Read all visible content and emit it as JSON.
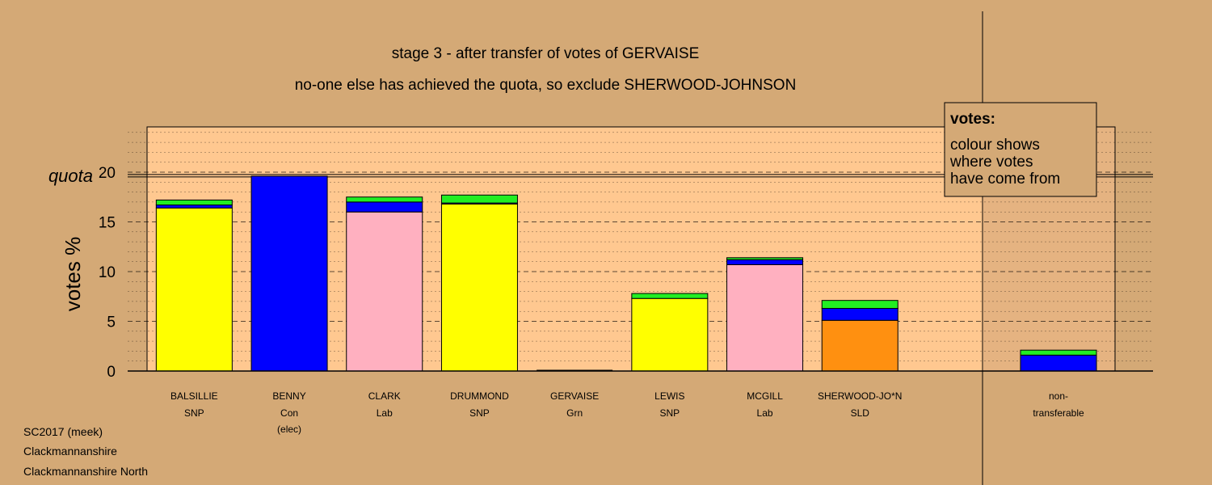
{
  "chart_data": {
    "type": "bar",
    "title": "stage 3 - after transfer of votes of GERVAISE",
    "subtitle": "no-one else has achieved the quota, so exclude SHERWOOD-JOHNSON",
    "ylabel": "votes %",
    "ylim": [
      0,
      25
    ],
    "yticks": [
      "0",
      "5",
      "10",
      "15",
      "20"
    ],
    "quota_label": "quota",
    "quota_value": 19.6,
    "categories": [
      {
        "name": "BALSILLIE",
        "party": "SNP",
        "note": ""
      },
      {
        "name": "BENNY",
        "party": "Con",
        "note": "(elec)"
      },
      {
        "name": "CLARK",
        "party": "Lab",
        "note": ""
      },
      {
        "name": "DRUMMOND",
        "party": "SNP",
        "note": ""
      },
      {
        "name": "GERVAISE",
        "party": "Grn",
        "note": ""
      },
      {
        "name": "LEWIS",
        "party": "SNP",
        "note": ""
      },
      {
        "name": "MCGILL",
        "party": "Lab",
        "note": ""
      },
      {
        "name": "SHERWOOD-JO*N",
        "party": "SLD",
        "note": ""
      }
    ],
    "segments": [
      [
        {
          "value": 16.4,
          "color": "#ffff00"
        },
        {
          "value": 0.3,
          "color": "#0000ff"
        },
        {
          "value": 0.5,
          "color": "#22ee22"
        }
      ],
      [
        {
          "value": 19.6,
          "color": "#0000ff"
        }
      ],
      [
        {
          "value": 16.0,
          "color": "#ffb0c0"
        },
        {
          "value": 1.0,
          "color": "#0000ff"
        },
        {
          "value": 0.5,
          "color": "#22ee22"
        }
      ],
      [
        {
          "value": 16.8,
          "color": "#ffff00"
        },
        {
          "value": 0.1,
          "color": "#0000ff"
        },
        {
          "value": 0.8,
          "color": "#22ee22"
        }
      ],
      [],
      [
        {
          "value": 7.3,
          "color": "#ffff00"
        },
        {
          "value": 0.5,
          "color": "#22ee22"
        }
      ],
      [
        {
          "value": 10.7,
          "color": "#ffb0c0"
        },
        {
          "value": 0.5,
          "color": "#0000ff"
        },
        {
          "value": 0.2,
          "color": "#22ee22"
        }
      ],
      [
        {
          "value": 5.1,
          "color": "#ff9010"
        },
        {
          "value": 1.2,
          "color": "#0000ff"
        },
        {
          "value": 0.8,
          "color": "#22ee22"
        }
      ]
    ],
    "nontransferable": {
      "label_line1": "non-",
      "label_line2": "transferable",
      "segments": [
        {
          "value": 1.6,
          "color": "#0000ff"
        },
        {
          "value": 0.5,
          "color": "#22ee22"
        }
      ]
    },
    "legend": {
      "title": "votes:",
      "lines": [
        "colour shows",
        "where votes",
        "have come from"
      ],
      "placement": "top-right"
    },
    "colors": {
      "background": "#d4a976",
      "plot_area": "#ffc890"
    }
  },
  "footer": [
    "SC2017 (meek)",
    "Clackmannanshire",
    "Clackmannanshire North"
  ]
}
